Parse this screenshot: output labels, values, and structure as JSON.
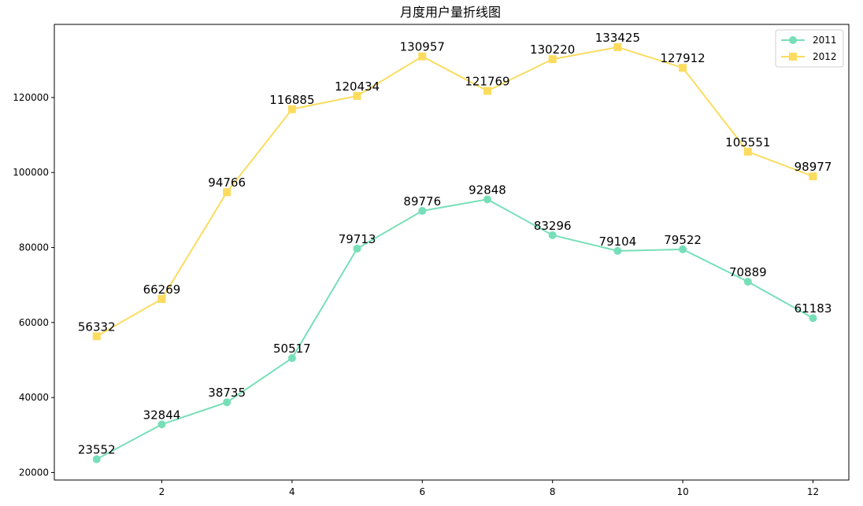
{
  "chart_data": {
    "type": "line",
    "title": "月度用户量折线图",
    "xlabel": "",
    "ylabel": "",
    "x": [
      1,
      2,
      3,
      4,
      5,
      6,
      7,
      8,
      9,
      10,
      11,
      12
    ],
    "xticks": [
      2,
      4,
      6,
      8,
      10,
      12
    ],
    "xlim": [
      0.35,
      12.55
    ],
    "yticks": [
      20000,
      40000,
      60000,
      80000,
      100000,
      120000
    ],
    "ylim": [
      18000,
      139500
    ],
    "grid": false,
    "legend_position": "top-right",
    "series": [
      {
        "name": "2011",
        "marker": "circle",
        "color": "#77dfb8",
        "values": [
          23552,
          32844,
          38735,
          50517,
          79713,
          89776,
          92848,
          83296,
          79104,
          79522,
          70889,
          61183
        ]
      },
      {
        "name": "2012",
        "marker": "square",
        "color": "#fbdc5f",
        "values": [
          56332,
          66269,
          94766,
          116885,
          120434,
          130957,
          121769,
          130220,
          133425,
          127912,
          105551,
          98977
        ]
      }
    ]
  }
}
